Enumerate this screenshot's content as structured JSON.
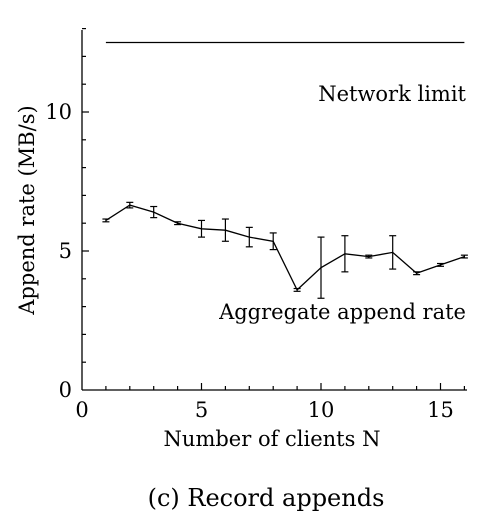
{
  "chart_data": {
    "type": "line",
    "xlabel": "Number of clients N",
    "ylabel": "Append rate (MB/s)",
    "xlim": [
      0,
      16
    ],
    "ylim": [
      0,
      13
    ],
    "x_ticks": [
      0,
      5,
      10,
      15
    ],
    "y_ticks": [
      0,
      5,
      10
    ],
    "grid": false,
    "caption": "(c) Record appends",
    "series": [
      {
        "name": "Network limit",
        "x": [
          1,
          16
        ],
        "y": [
          12.5,
          12.5
        ]
      },
      {
        "name": "Aggregate append rate",
        "x": [
          1,
          2,
          3,
          4,
          5,
          6,
          7,
          8,
          9,
          10,
          11,
          12,
          13,
          14,
          15,
          16
        ],
        "y": [
          6.1,
          6.65,
          6.4,
          6.0,
          5.8,
          5.75,
          5.5,
          5.35,
          3.6,
          4.4,
          4.9,
          4.8,
          4.95,
          4.2,
          4.5,
          4.8
        ],
        "error": [
          0.05,
          0.1,
          0.2,
          0.05,
          0.3,
          0.4,
          0.35,
          0.3,
          0.05,
          1.1,
          0.65,
          0.05,
          0.6,
          0.05,
          0.05,
          0.05
        ]
      }
    ]
  }
}
